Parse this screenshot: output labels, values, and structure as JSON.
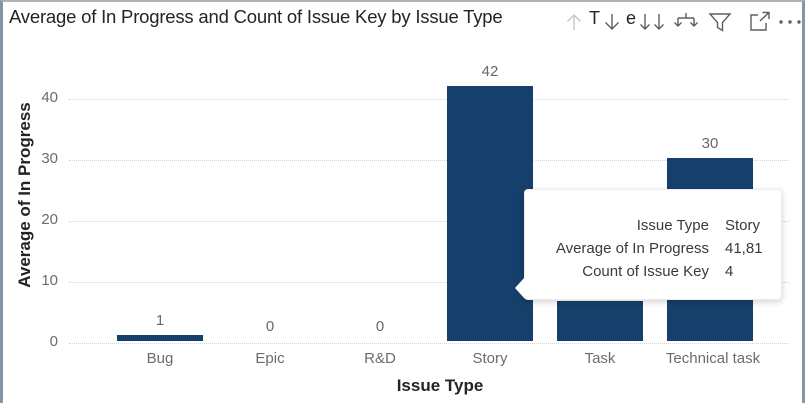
{
  "header": {
    "title": "Average of In Progress and Count of Issue Key by Issue Type",
    "title_peek_fragments": {
      "first": "T",
      "second": "e"
    },
    "icon_names": [
      "drill-up-icon",
      "drill-down-icon",
      "go-to-next-level-icon",
      "expand-all-down-icon",
      "filter-icon",
      "focus-mode-icon",
      "more-options-icon"
    ]
  },
  "chart_data": {
    "type": "bar",
    "title": "Average of In Progress and Count of Issue Key by Issue Type",
    "categories": [
      "Bug",
      "Epic",
      "R&D",
      "Story",
      "Task",
      "Technical task"
    ],
    "series": [
      {
        "name": "Average of In Progress",
        "values": [
          1,
          0,
          0,
          41.81,
          6.5,
          30
        ]
      }
    ],
    "data_labels": [
      "1",
      "0",
      "0",
      "42",
      "",
      "30"
    ],
    "xlabel": "Issue Type",
    "ylabel": "Average of In Progress",
    "ylim": [
      0,
      45
    ],
    "yticks": [
      0,
      10,
      20,
      30,
      40
    ],
    "ytick_labels": [
      "0",
      "10",
      "20",
      "30",
      "40"
    ],
    "grid": true,
    "legend": false,
    "bar_color": "#173F6B"
  },
  "tooltip": {
    "rows": [
      {
        "label": "Issue Type",
        "value": "Story"
      },
      {
        "label": "Average of In Progress",
        "value": "41,81"
      },
      {
        "label": "Count of Issue Key",
        "value": "4"
      }
    ]
  },
  "colors": {
    "bar": "#173F6B",
    "card_border": "#8295A9",
    "grid_line": "#D6D6D6",
    "label_grey": "#6E6C69",
    "title_dark": "#252423"
  }
}
